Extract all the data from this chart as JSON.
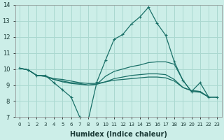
{
  "xlabel": "Humidex (Indice chaleur)",
  "bg_color": "#cceee8",
  "grid_color": "#aad8d0",
  "line_color": "#1a7068",
  "xlim": [
    -0.5,
    23.5
  ],
  "ylim": [
    7,
    14
  ],
  "xticks": [
    0,
    1,
    2,
    3,
    4,
    5,
    6,
    7,
    8,
    9,
    10,
    11,
    12,
    13,
    14,
    15,
    16,
    17,
    18,
    19,
    20,
    21,
    22,
    23
  ],
  "yticks": [
    7,
    8,
    9,
    10,
    11,
    12,
    13,
    14
  ],
  "lines": [
    {
      "x": [
        0,
        1,
        2,
        3,
        4,
        5,
        6,
        7,
        8,
        9,
        10,
        11,
        12,
        13,
        14,
        15,
        16,
        17,
        18,
        19,
        20,
        21,
        22,
        23
      ],
      "y": [
        10.05,
        9.95,
        9.6,
        9.6,
        9.15,
        8.7,
        8.25,
        7.0,
        6.85,
        9.2,
        10.55,
        11.85,
        12.15,
        12.8,
        13.25,
        13.85,
        12.85,
        12.1,
        10.45,
        9.3,
        8.6,
        9.15,
        8.25,
        8.25
      ],
      "has_markers": true
    },
    {
      "x": [
        0,
        1,
        2,
        3,
        4,
        5,
        6,
        7,
        8,
        9,
        10,
        11,
        12,
        13,
        14,
        15,
        16,
        17,
        18,
        19,
        20,
        21,
        22,
        23
      ],
      "y": [
        10.05,
        9.95,
        9.6,
        9.55,
        9.35,
        9.2,
        9.1,
        9.05,
        9.0,
        9.05,
        9.55,
        9.85,
        10.0,
        10.15,
        10.25,
        10.4,
        10.45,
        10.45,
        10.3,
        9.3,
        8.6,
        8.55,
        8.25,
        8.25
      ],
      "has_markers": false
    },
    {
      "x": [
        0,
        1,
        2,
        3,
        4,
        5,
        6,
        7,
        8,
        9,
        10,
        11,
        12,
        13,
        14,
        15,
        16,
        17,
        18,
        19,
        20,
        21,
        22,
        23
      ],
      "y": [
        10.05,
        9.95,
        9.6,
        9.55,
        9.35,
        9.25,
        9.15,
        9.1,
        9.0,
        9.05,
        9.2,
        9.4,
        9.5,
        9.6,
        9.65,
        9.7,
        9.7,
        9.65,
        9.35,
        8.85,
        8.65,
        8.6,
        8.25,
        8.25
      ],
      "has_markers": false
    },
    {
      "x": [
        0,
        1,
        2,
        3,
        4,
        5,
        6,
        7,
        8,
        9,
        10,
        11,
        12,
        13,
        14,
        15,
        16,
        17,
        18,
        19,
        20,
        21,
        22,
        23
      ],
      "y": [
        10.05,
        9.95,
        9.6,
        9.55,
        9.4,
        9.35,
        9.25,
        9.15,
        9.1,
        9.1,
        9.2,
        9.3,
        9.35,
        9.4,
        9.45,
        9.5,
        9.5,
        9.45,
        9.25,
        8.85,
        8.65,
        8.6,
        8.25,
        8.25
      ],
      "has_markers": false
    }
  ]
}
